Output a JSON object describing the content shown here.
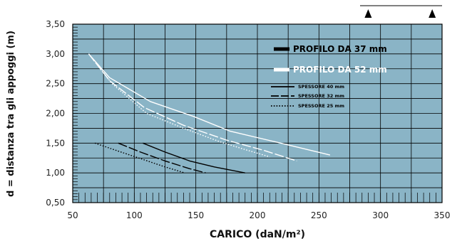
{
  "chart_data": {
    "type": "line",
    "xlabel": "CARICO (daN/m²)",
    "ylabel": "d = distanza tra gli appoggi (m)",
    "xlim": [
      50,
      350
    ],
    "ylim": [
      0.5,
      3.5
    ],
    "x_ticks": [
      "50",
      "100",
      "150",
      "200",
      "250",
      "300",
      "350"
    ],
    "y_ticks": [
      "0,50",
      "1,00",
      "1,50",
      "2,00",
      "2,50",
      "3,00",
      "3,50"
    ],
    "grid": true,
    "plot_background": "#8ab4c6",
    "legend": {
      "placement": "top-right",
      "profiles": [
        {
          "label": "PROFILO DA 37 mm",
          "color": "#000000"
        },
        {
          "label": "PROFILO DA 52 mm",
          "color": "#ffffff"
        }
      ],
      "thicknesses": [
        {
          "label": "SPESSORE 40 mm",
          "style": "solid"
        },
        {
          "label": "SPESSORE 32 mm",
          "style": "dashed"
        },
        {
          "label": "SPESSORE 25 mm",
          "style": "dotted"
        }
      ]
    },
    "series": [
      {
        "profile": "37 mm",
        "thickness": "40 mm",
        "color": "#000000",
        "style": "solid",
        "x": [
          107,
          125,
          145,
          165,
          190
        ],
        "y": [
          1.5,
          1.35,
          1.2,
          1.1,
          1.0
        ]
      },
      {
        "profile": "37 mm",
        "thickness": "32 mm",
        "color": "#000000",
        "style": "dashed",
        "x": [
          87,
          105,
          125,
          145,
          158
        ],
        "y": [
          1.5,
          1.35,
          1.2,
          1.07,
          1.0
        ]
      },
      {
        "profile": "37 mm",
        "thickness": "25 mm",
        "color": "#000000",
        "style": "dotted",
        "x": [
          68,
          85,
          105,
          125,
          141
        ],
        "y": [
          1.5,
          1.38,
          1.24,
          1.1,
          1.0
        ]
      },
      {
        "profile": "52 mm",
        "thickness": "40 mm",
        "color": "#ffffff",
        "style": "solid",
        "x": [
          63,
          80,
          113,
          148,
          178,
          215,
          259
        ],
        "y": [
          3.0,
          2.6,
          2.2,
          1.95,
          1.7,
          1.52,
          1.3
        ]
      },
      {
        "profile": "52 mm",
        "thickness": "32 mm",
        "color": "#ffffff",
        "style": "dashed",
        "x": [
          63,
          80,
          108,
          140,
          175,
          205,
          232
        ],
        "y": [
          3.0,
          2.55,
          2.1,
          1.8,
          1.55,
          1.38,
          1.2
        ]
      },
      {
        "profile": "52 mm",
        "thickness": "25 mm",
        "color": "#ffffff",
        "style": "dotted",
        "x": [
          63,
          82,
          110,
          140,
          170,
          192,
          210
        ],
        "y": [
          3.0,
          2.5,
          2.0,
          1.75,
          1.52,
          1.38,
          1.27
        ]
      }
    ],
    "top_scale_markers": [
      290,
      342
    ]
  }
}
